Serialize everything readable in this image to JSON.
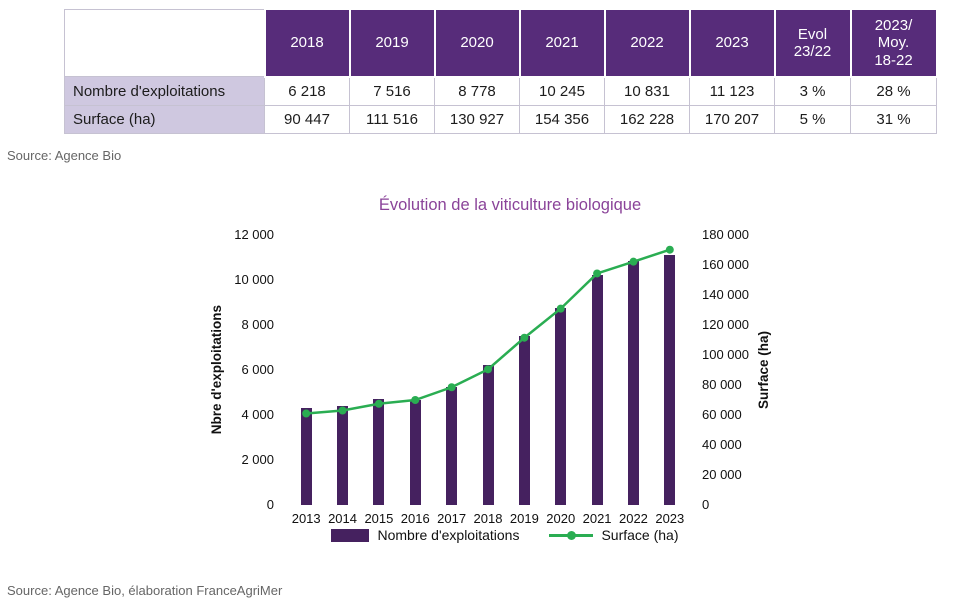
{
  "table": {
    "col_headers": [
      "",
      "2018",
      "2019",
      "2020",
      "2021",
      "2022",
      "2023",
      "Evol\n23/22",
      "2023/\nMoy.\n18-22"
    ],
    "rows": [
      {
        "label": "Nombre d'exploitations",
        "values": [
          "6 218",
          "7 516",
          "8 778",
          "10 245",
          "10 831",
          "11 123",
          "3 %",
          "28 %"
        ]
      },
      {
        "label": "Surface (ha)",
        "values": [
          "90 447",
          "111 516",
          "130 927",
          "154 356",
          "162 228",
          "170 207",
          "5 %",
          "31 %"
        ]
      }
    ]
  },
  "source_top": "Source: Agence Bio",
  "source_bottom": "Source: Agence Bio, élaboration FranceAgriMer",
  "colors": {
    "table_header": "#572c7a",
    "table_row_label": "#cfc8e0",
    "bar": "#45215f",
    "line": "#2aad52",
    "title": "#8a4399"
  },
  "chart_data": {
    "type": "bar+line",
    "title": "Évolution de la viticulture biologique",
    "categories": [
      "2013",
      "2014",
      "2015",
      "2016",
      "2017",
      "2018",
      "2019",
      "2020",
      "2021",
      "2022",
      "2023"
    ],
    "series": [
      {
        "name": "Nombre d'exploitations",
        "type": "bar",
        "axis": "left",
        "color": "#45215f",
        "values": [
          4300,
          4400,
          4700,
          4650,
          5250,
          6218,
          7516,
          8778,
          10245,
          10831,
          11123
        ]
      },
      {
        "name": "Surface (ha)",
        "type": "line",
        "axis": "right",
        "color": "#2aad52",
        "values": [
          61000,
          63000,
          67500,
          70000,
          78500,
          90447,
          111516,
          130927,
          154356,
          162228,
          170207
        ]
      }
    ],
    "left_axis": {
      "label": "Nbre d'exploitations",
      "min": 0,
      "max": 12000,
      "step": 2000,
      "ticks": [
        "0",
        "2 000",
        "4 000",
        "6 000",
        "8 000",
        "10 000",
        "12 000"
      ]
    },
    "right_axis": {
      "label": "Surface (ha)",
      "min": 0,
      "max": 180000,
      "step": 20000,
      "ticks": [
        "0",
        "20 000",
        "40 000",
        "60 000",
        "80 000",
        "100 000",
        "120 000",
        "140 000",
        "160 000",
        "180 000"
      ]
    },
    "legend": [
      {
        "label": "Nombre d'exploitations",
        "swatch": "bar"
      },
      {
        "label": "Surface (ha)",
        "swatch": "line"
      }
    ],
    "grid": false,
    "legend_position": "bottom"
  }
}
